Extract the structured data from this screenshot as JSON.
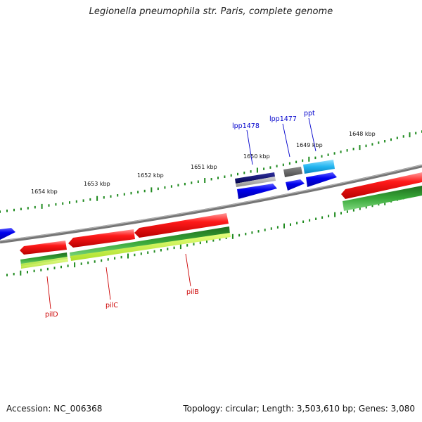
{
  "title": "Legionella pneumophila str. Paris, complete genome",
  "footer": {
    "accession": "Accession: NC_006368",
    "topology": "Topology: circular; Length: 3,503,610 bp; Genes: 3,080"
  },
  "colors": {
    "backbone": "#7a7a7a",
    "tick": "#1f8a1f",
    "reverse_gene_label": "#cc0000",
    "forward_gene_label": "#0000cc",
    "red_feature": "#ee0000",
    "green_feature": "#2f9a2f",
    "lime_feature": "#ccff33",
    "blue_feature": "#0000ee",
    "navy_feature": "#000080",
    "grey_feature": "#777777",
    "cyan_feature": "#33bbee"
  },
  "kbp_labels": [
    "1648 kbp",
    "1649 kbp",
    "1650 kbp",
    "1651 kbp",
    "1652 kbp",
    "1653 kbp",
    "1654 kbp"
  ],
  "gene_labels": {
    "forward": [
      "lpp1478",
      "lpp1477",
      "ppt"
    ],
    "reverse": [
      "pilD",
      "pilC",
      "pilB"
    ]
  }
}
